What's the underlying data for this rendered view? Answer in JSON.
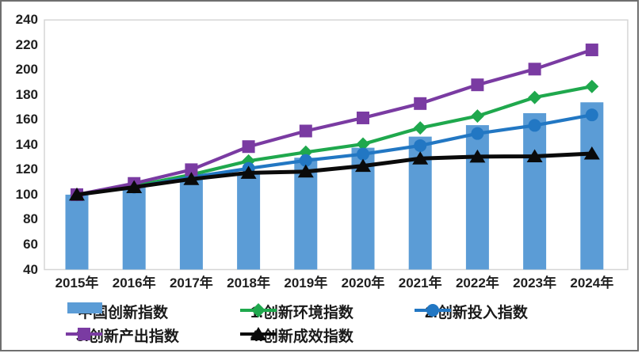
{
  "chart_data": {
    "type": "combo-bar-line",
    "title": "",
    "categories": [
      "2015年",
      "2016年",
      "2017年",
      "2018年",
      "2019年",
      "2020年",
      "2021年",
      "2022年",
      "2023年",
      "2024年"
    ],
    "bar_series": {
      "name": "中国创新指数",
      "color": "#5B9CD6",
      "values": [
        100,
        105.7,
        112,
        116.5,
        129.6,
        137.6,
        146.5,
        155.7,
        165.3,
        174.0
      ]
    },
    "line_series": [
      {
        "name": "1.创新环境指数",
        "marker": "diamond",
        "color": "#1FA84D",
        "values": [
          100,
          107,
          116,
          127,
          134,
          140.5,
          153.5,
          163,
          177.9,
          186.7
        ]
      },
      {
        "name": "2.创新投入指数",
        "marker": "circle",
        "color": "#2277C3",
        "values": [
          100,
          106,
          114,
          121,
          127.4,
          132.5,
          139.3,
          149,
          155.5,
          163.9
        ]
      },
      {
        "name": "3.创新产出指数",
        "marker": "square",
        "color": "#7A3BA2",
        "values": [
          100,
          109,
          120,
          138.5,
          151,
          161.5,
          173,
          188,
          200.6,
          216.0
        ]
      },
      {
        "name": "4.创新成效指数",
        "marker": "triangle",
        "color": "#0A0A0A",
        "values": [
          100,
          106,
          112.5,
          117.5,
          118.5,
          123,
          129,
          130.5,
          130.7,
          132.9
        ]
      }
    ],
    "y_axis": {
      "min": 40,
      "max": 240,
      "step": 20,
      "ticks": [
        240,
        220,
        200,
        180,
        160,
        140,
        120,
        100,
        80,
        60,
        40
      ]
    },
    "x_axis": {
      "label": "",
      "unit_suffix": "年"
    },
    "grid": "off",
    "legend_position": "bottom",
    "colors": {
      "axis_text": "#1f1f1f",
      "plot_border": "#d6d6d6",
      "outer_frame": "#6f6f6f"
    }
  }
}
